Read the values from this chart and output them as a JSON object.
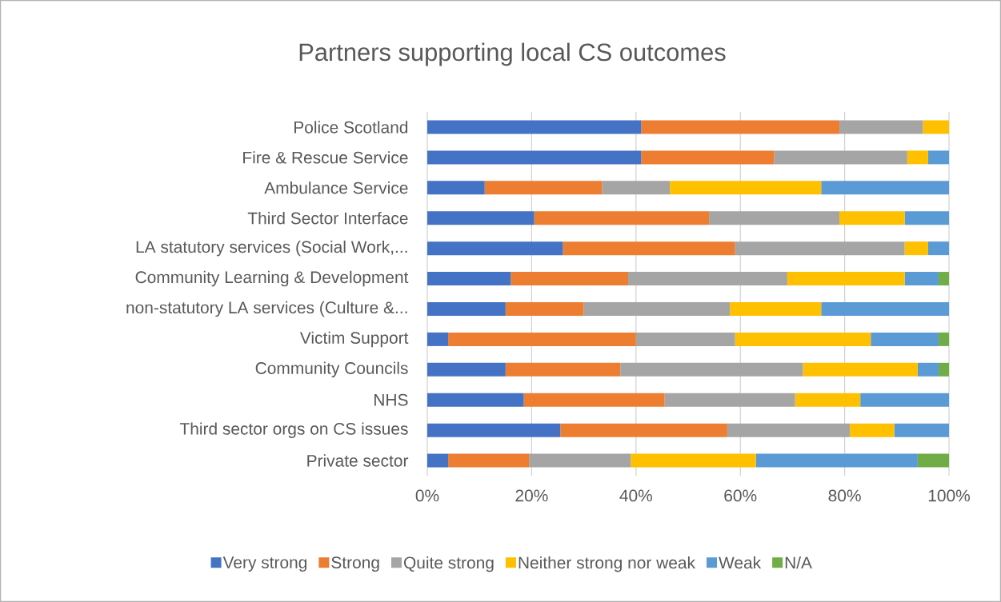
{
  "chart_data": {
    "type": "bar",
    "orientation": "horizontal",
    "stacked": true,
    "title": "Partners supporting local CS outcomes",
    "categories": [
      "Police Scotland",
      "Fire & Rescue Service",
      "Ambulance Service",
      "Third Sector Interface",
      "LA statutory services (Social Work,...",
      "Community Learning & Development",
      "non-statutory LA services (Culture &...",
      "Victim Support",
      "Community Councils",
      "NHS",
      "Third sector orgs on CS issues",
      "Private sector"
    ],
    "series": [
      {
        "name": "Very strong",
        "color": "#4472c4",
        "values": [
          41,
          41,
          11,
          20.5,
          26,
          16,
          15,
          4,
          15,
          18.5,
          25.5,
          4
        ]
      },
      {
        "name": "Strong",
        "color": "#ed7d31",
        "values": [
          38,
          25.5,
          22.5,
          33.5,
          33,
          22.5,
          15,
          36,
          22,
          27,
          32,
          15.5
        ]
      },
      {
        "name": "Quite strong",
        "color": "#a5a5a5",
        "values": [
          16,
          25.5,
          13,
          25,
          32.5,
          30.5,
          28,
          19,
          35,
          25,
          23.5,
          19.5
        ]
      },
      {
        "name": "Neither strong nor weak",
        "color": "#ffc000",
        "values": [
          5,
          4,
          29,
          12.5,
          4.5,
          22.5,
          17.5,
          26,
          22,
          12.5,
          8.5,
          24
        ]
      },
      {
        "name": "Weak",
        "color": "#5b9bd5",
        "values": [
          null,
          4,
          24.5,
          8.5,
          4,
          6.5,
          24.5,
          13,
          4,
          17,
          10.5,
          31
        ]
      },
      {
        "name": "N/A",
        "color": "#70ad47",
        "values": [
          null,
          null,
          null,
          null,
          null,
          2,
          null,
          2,
          2,
          null,
          null,
          6
        ]
      }
    ],
    "xlim": [
      0,
      100
    ],
    "xticks": [
      {
        "value": 0,
        "label": "0%"
      },
      {
        "value": 20,
        "label": "20%"
      },
      {
        "value": 40,
        "label": "40%"
      },
      {
        "value": 60,
        "label": "60%"
      },
      {
        "value": 80,
        "label": "80%"
      },
      {
        "value": 100,
        "label": "100%"
      }
    ],
    "grid": "x",
    "legend": "bottom"
  }
}
